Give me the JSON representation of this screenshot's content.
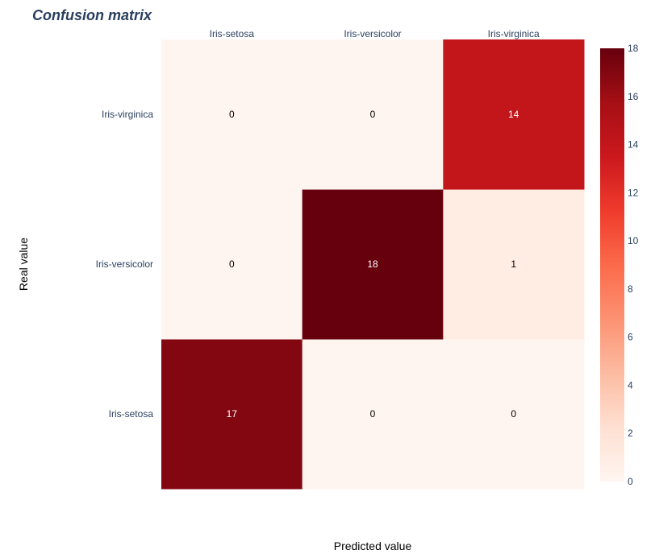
{
  "chart_data": {
    "type": "heatmap",
    "title": "Confusion matrix",
    "xlabel": "Predicted value",
    "ylabel": "Real value",
    "x_categories": [
      "Iris-setosa",
      "Iris-versicolor",
      "Iris-virginica"
    ],
    "y_categories": [
      "Iris-setosa",
      "Iris-versicolor",
      "Iris-virginica"
    ],
    "z": [
      [
        17,
        0,
        0
      ],
      [
        0,
        18,
        1
      ],
      [
        0,
        0,
        14
      ]
    ],
    "colorscale": "Reds",
    "zrange": [
      0,
      18
    ],
    "colorbar_ticks": [
      0,
      2,
      4,
      6,
      8,
      10,
      12,
      14,
      16,
      18
    ],
    "x_axis_side": "top",
    "grid": false,
    "show_values": true
  }
}
